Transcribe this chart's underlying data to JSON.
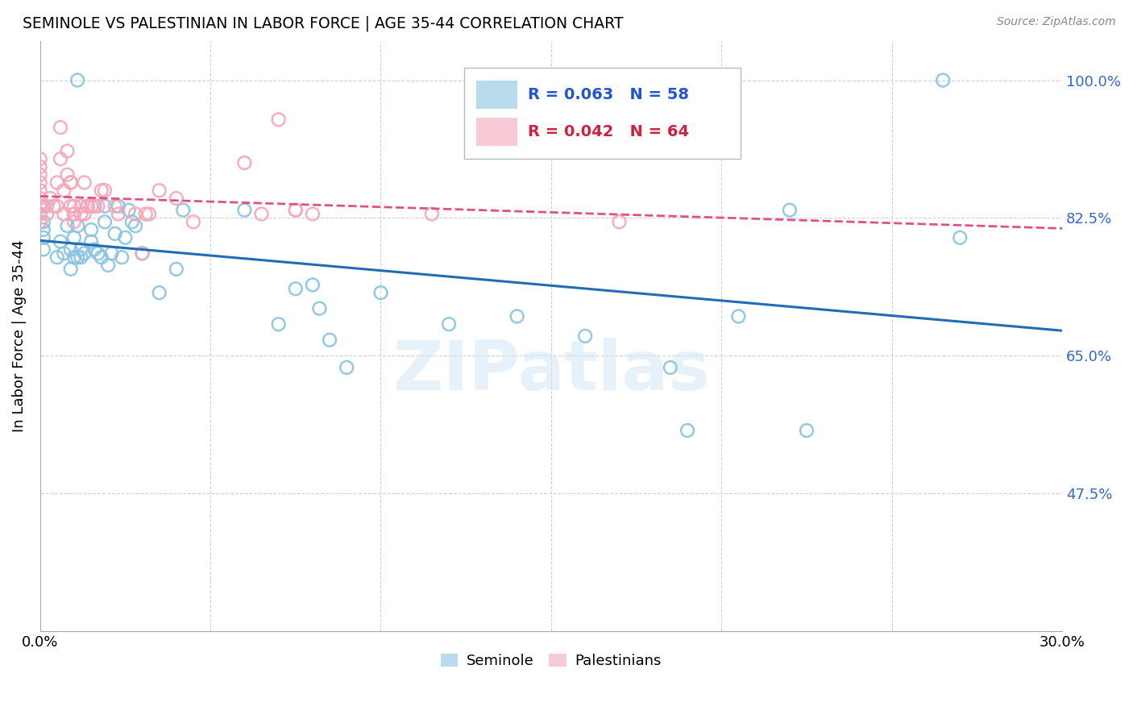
{
  "title": "SEMINOLE VS PALESTINIAN IN LABOR FORCE | AGE 35-44 CORRELATION CHART",
  "source": "Source: ZipAtlas.com",
  "ylabel": "In Labor Force | Age 35-44",
  "xlim": [
    0.0,
    0.3
  ],
  "ylim": [
    0.3,
    1.05
  ],
  "yticks": [
    0.3,
    0.475,
    0.65,
    0.825,
    1.0
  ],
  "ytick_labels": [
    "",
    "47.5%",
    "65.0%",
    "82.5%",
    "100.0%"
  ],
  "xticks": [
    0.0,
    0.05,
    0.1,
    0.15,
    0.2,
    0.25,
    0.3
  ],
  "xtick_labels": [
    "0.0%",
    "",
    "",
    "",
    "",
    "",
    "30.0%"
  ],
  "seminole_color": "#89c4e1",
  "palestinian_color": "#f4a7b9",
  "trendline_seminole_color": "#1f6db5",
  "trendline_palestinian_color": "#e05080",
  "watermark": "ZIPatlas",
  "seminole_x": [
    0.001,
    0.001,
    0.001,
    0.001,
    0.001,
    0.005,
    0.006,
    0.007,
    0.008,
    0.009,
    0.009,
    0.01,
    0.01,
    0.011,
    0.011,
    0.011,
    0.012,
    0.012,
    0.013,
    0.014,
    0.015,
    0.015,
    0.016,
    0.017,
    0.018,
    0.019,
    0.019,
    0.02,
    0.021,
    0.022,
    0.023,
    0.024,
    0.025,
    0.026,
    0.027,
    0.028,
    0.03,
    0.035,
    0.04,
    0.042,
    0.06,
    0.07,
    0.075,
    0.08,
    0.082,
    0.085,
    0.09,
    0.1,
    0.12,
    0.14,
    0.16,
    0.185,
    0.19,
    0.205,
    0.22,
    0.225,
    0.265,
    0.27
  ],
  "seminole_y": [
    0.785,
    0.8,
    0.81,
    0.82,
    0.84,
    0.775,
    0.795,
    0.78,
    0.815,
    0.76,
    0.785,
    0.775,
    0.8,
    0.815,
    0.775,
    1.0,
    0.775,
    0.785,
    0.78,
    0.84,
    0.795,
    0.81,
    0.785,
    0.78,
    0.775,
    0.82,
    0.84,
    0.765,
    0.78,
    0.805,
    0.84,
    0.775,
    0.8,
    0.835,
    0.82,
    0.815,
    0.78,
    0.73,
    0.76,
    0.835,
    0.835,
    0.69,
    0.735,
    0.74,
    0.71,
    0.67,
    0.635,
    0.73,
    0.69,
    0.7,
    0.675,
    0.635,
    0.555,
    0.7,
    0.835,
    0.555,
    1.0,
    0.8
  ],
  "palestinian_x": [
    0.0,
    0.0,
    0.0,
    0.0,
    0.0,
    0.0,
    0.0,
    0.0,
    0.0,
    0.0,
    0.0,
    0.002,
    0.002,
    0.003,
    0.004,
    0.005,
    0.005,
    0.006,
    0.006,
    0.007,
    0.007,
    0.008,
    0.008,
    0.009,
    0.009,
    0.009,
    0.01,
    0.01,
    0.01,
    0.01,
    0.012,
    0.012,
    0.013,
    0.013,
    0.014,
    0.015,
    0.016,
    0.016,
    0.017,
    0.018,
    0.019,
    0.022,
    0.023,
    0.028,
    0.03,
    0.031,
    0.032,
    0.035,
    0.04,
    0.045,
    0.06,
    0.065,
    0.07,
    0.075,
    0.075,
    0.08,
    0.115,
    0.17
  ],
  "palestinian_y": [
    0.82,
    0.83,
    0.84,
    0.85,
    0.86,
    0.87,
    0.88,
    0.89,
    0.9,
    0.84,
    0.82,
    0.83,
    0.84,
    0.85,
    0.84,
    0.87,
    0.84,
    0.9,
    0.94,
    0.83,
    0.86,
    0.91,
    0.88,
    0.87,
    0.84,
    0.87,
    0.83,
    0.84,
    0.83,
    0.82,
    0.83,
    0.84,
    0.83,
    0.87,
    0.84,
    0.84,
    0.84,
    0.84,
    0.84,
    0.86,
    0.86,
    0.84,
    0.83,
    0.83,
    0.78,
    0.83,
    0.83,
    0.86,
    0.85,
    0.82,
    0.895,
    0.83,
    0.95,
    0.835,
    0.835,
    0.83,
    0.83,
    0.82
  ]
}
